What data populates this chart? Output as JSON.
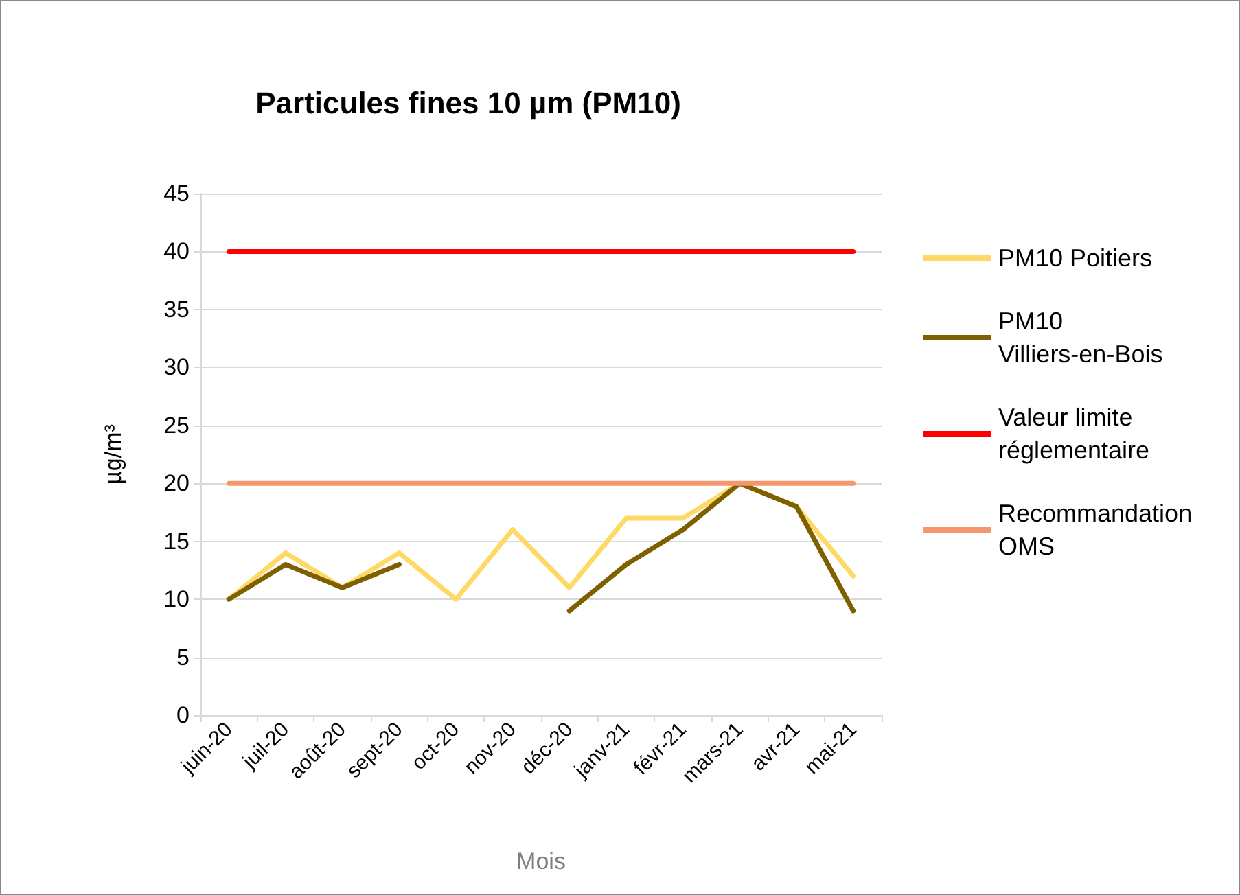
{
  "chart_data": {
    "type": "line",
    "title": "Particules fines 10 µm (PM10)",
    "xlabel": "Mois",
    "ylabel": "µg/m³",
    "categories": [
      "juin-20",
      "juil-20",
      "août-20",
      "sept-20",
      "oct-20",
      "nov-20",
      "déc-20",
      "janv-21",
      "févr-21",
      "mars-21",
      "avr-21",
      "mai-21"
    ],
    "series": [
      {
        "name": "PM10 Poitiers",
        "color": "#ffd966",
        "values": [
          10,
          14,
          11,
          14,
          10,
          16,
          11,
          17,
          17,
          20,
          18,
          12
        ]
      },
      {
        "name": "PM10 Villiers-en-Bois",
        "color": "#7f6000",
        "values": [
          10,
          13,
          11,
          13,
          null,
          null,
          9,
          13,
          16,
          20,
          18,
          9
        ]
      },
      {
        "name": "Valeur limite réglementaire",
        "color": "#ff0000",
        "values": [
          40,
          40,
          40,
          40,
          40,
          40,
          40,
          40,
          40,
          40,
          40,
          40
        ]
      },
      {
        "name": "Recommandation OMS",
        "color": "#f4976c",
        "values": [
          20,
          20,
          20,
          20,
          20,
          20,
          20,
          20,
          20,
          20,
          20,
          20
        ]
      }
    ],
    "ylim": [
      0,
      45
    ],
    "yticks": [
      0,
      5,
      10,
      15,
      20,
      25,
      30,
      35,
      40,
      45
    ],
    "grid": "y",
    "legend": "right",
    "marker": "none",
    "line_style": "solid"
  }
}
